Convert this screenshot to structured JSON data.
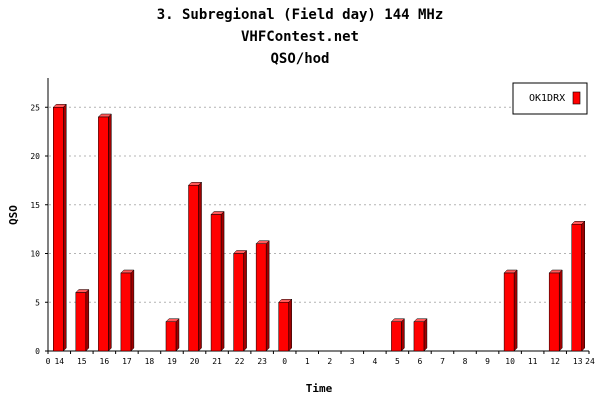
{
  "chart_data": {
    "type": "bar",
    "title_lines": [
      "3. Subregional (Field day) 144 MHz",
      "VHFContest.net",
      "QSO/hod"
    ],
    "xlabel": "Time",
    "ylabel": "QSO",
    "axis_start_label": "0",
    "axis_end_label": "24",
    "categories": [
      "14",
      "15",
      "16",
      "17",
      "18",
      "19",
      "20",
      "21",
      "22",
      "23",
      "0",
      "1",
      "2",
      "3",
      "4",
      "5",
      "6",
      "7",
      "8",
      "9",
      "10",
      "11",
      "12",
      "13"
    ],
    "y_ticks": [
      0,
      5,
      10,
      15,
      20,
      25
    ],
    "ylim": [
      0,
      28
    ],
    "grid": true,
    "legend_position": "top-right",
    "series": [
      {
        "name": "OK1DRX",
        "color": "#ff0000",
        "values": [
          25,
          6,
          24,
          8,
          0,
          3,
          17,
          14,
          10,
          11,
          5,
          0,
          0,
          0,
          0,
          3,
          3,
          0,
          0,
          0,
          8,
          0,
          8,
          13
        ]
      }
    ]
  }
}
